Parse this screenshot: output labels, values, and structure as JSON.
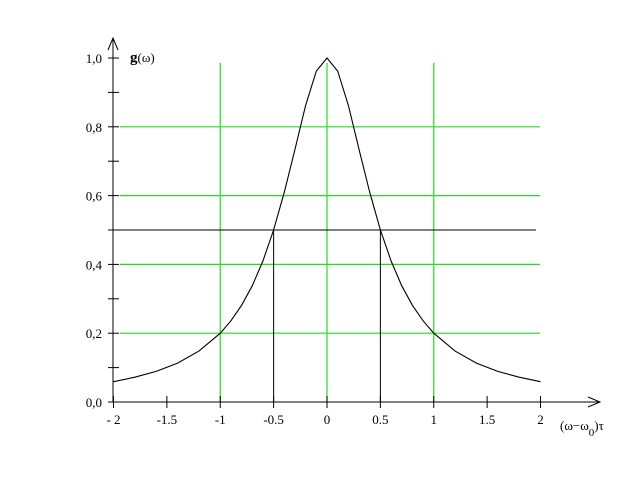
{
  "chart_data": {
    "type": "line",
    "title": "",
    "ylabel": "g(ω)",
    "xlabel": "(ω−ω0)τ",
    "xlabel_parts": {
      "pre": "(ω−ω",
      "sub": "0",
      "post": ")τ"
    },
    "ylabel_parts": {
      "bold": "g",
      "rest": "(ω)"
    },
    "xlim": [
      -2,
      2
    ],
    "ylim": [
      0,
      1
    ],
    "x_ticks": [
      -2,
      -1.5,
      -1,
      -0.5,
      0,
      0.5,
      1,
      1.5,
      2
    ],
    "x_tick_labels": [
      "- 2",
      "-1.5",
      "-1",
      "-0.5",
      "0",
      "0.5",
      "1",
      "1.5",
      "2"
    ],
    "y_ticks": [
      0,
      0.2,
      0.4,
      0.6,
      0.8,
      1.0
    ],
    "y_tick_labels": [
      "0,0",
      "0,2",
      "0,4",
      "0,6",
      "0,8",
      "1,0"
    ],
    "y_minor_step": 0.1,
    "grid": true,
    "grid_x": [
      -1,
      0,
      1
    ],
    "grid_y": [
      0.2,
      0.4,
      0.6,
      0.8
    ],
    "grid_color": "#22dd22",
    "half_max_level": 0.5,
    "half_max_x": [
      -0.5,
      0.5
    ],
    "series": [
      {
        "function": "1/(1+4x^2)",
        "color": "#000000",
        "x": [
          -2,
          -1.8,
          -1.6,
          -1.4,
          -1.2,
          -1,
          -0.9,
          -0.8,
          -0.7,
          -0.6,
          -0.5,
          -0.4,
          -0.3,
          -0.2,
          -0.1,
          0,
          0.1,
          0.2,
          0.3,
          0.4,
          0.5,
          0.6,
          0.7,
          0.8,
          0.9,
          1,
          1.2,
          1.4,
          1.6,
          1.8,
          2
        ],
        "y": [
          0.059,
          0.072,
          0.089,
          0.113,
          0.148,
          0.2,
          0.236,
          0.281,
          0.338,
          0.41,
          0.5,
          0.61,
          0.735,
          0.862,
          0.962,
          1.0,
          0.962,
          0.862,
          0.735,
          0.61,
          0.5,
          0.41,
          0.338,
          0.281,
          0.236,
          0.2,
          0.148,
          0.113,
          0.089,
          0.072,
          0.059
        ]
      }
    ]
  }
}
